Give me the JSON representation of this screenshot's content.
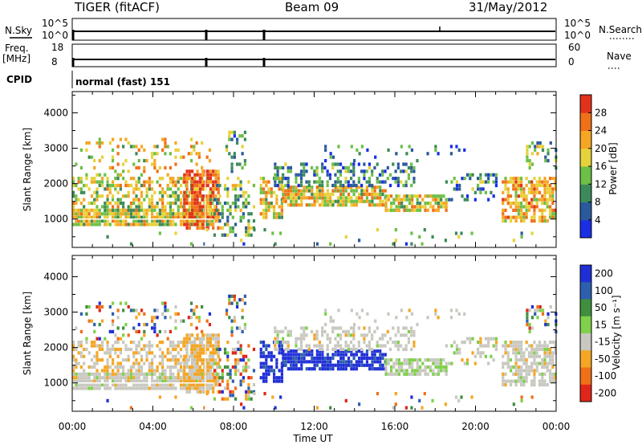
{
  "header": {
    "radar": "TIGER (fitACF)",
    "beam": "Beam 09",
    "date": "31/May/2012"
  },
  "strips": {
    "nsky_label": "N.Sky",
    "nsearch_label": "N.Search",
    "freq_label_1": "Freq.",
    "freq_label_2": "[MHz]",
    "nave_label": "Nave",
    "cpid_label": "CPID",
    "cpid_value": "normal (fast) 151",
    "nsky_ticks": [
      "10^5",
      "10^0"
    ],
    "nsearch_ticks": [
      "10^5",
      "10^0"
    ],
    "freq_ticks": [
      "18",
      "8"
    ],
    "nave_ticks": [
      "60",
      "0"
    ]
  },
  "chart_data": [
    {
      "type": "heatmap",
      "panel": "power",
      "xlabel": "",
      "ylabel": "Slant Range [km]",
      "xlim": [
        0,
        24
      ],
      "ylim": [
        200,
        4600
      ],
      "x_ticks": [
        "00:00",
        "04:00",
        "08:00",
        "12:00",
        "16:00",
        "20:00",
        "00:00"
      ],
      "y_ticks": [
        "1000",
        "2000",
        "3000",
        "4000"
      ],
      "colorbar_label": "Power [dB]",
      "colorbar_ticks": [
        "4",
        "8",
        "12",
        "16",
        "20",
        "24",
        "28"
      ],
      "colorbar_range": [
        0,
        32
      ],
      "colors": [
        "#1a2ee6",
        "#2a5a9e",
        "#3c8a5a",
        "#6cbf47",
        "#e6d23a",
        "#f5a623",
        "#f07018",
        "#e3321c"
      ]
    },
    {
      "type": "heatmap",
      "panel": "velocity",
      "xlabel": "Time UT",
      "ylabel": "Slant Range [km]",
      "xlim": [
        0,
        24
      ],
      "ylim": [
        200,
        4600
      ],
      "x_ticks": [
        "00:00",
        "04:00",
        "08:00",
        "12:00",
        "16:00",
        "20:00",
        "00:00"
      ],
      "y_ticks": [
        "1000",
        "2000",
        "3000",
        "4000"
      ],
      "colorbar_label": "Velocity [m s⁻¹]",
      "colorbar_ticks": [
        "200",
        "100",
        "50",
        "15",
        "-15",
        "-50",
        "-100",
        "-200"
      ],
      "colors": [
        "#1f2fd6",
        "#2e5fae",
        "#3f8f3f",
        "#7fd04a",
        "#c8c8c0",
        "#f5a623",
        "#f07018",
        "#e0261a"
      ]
    }
  ]
}
